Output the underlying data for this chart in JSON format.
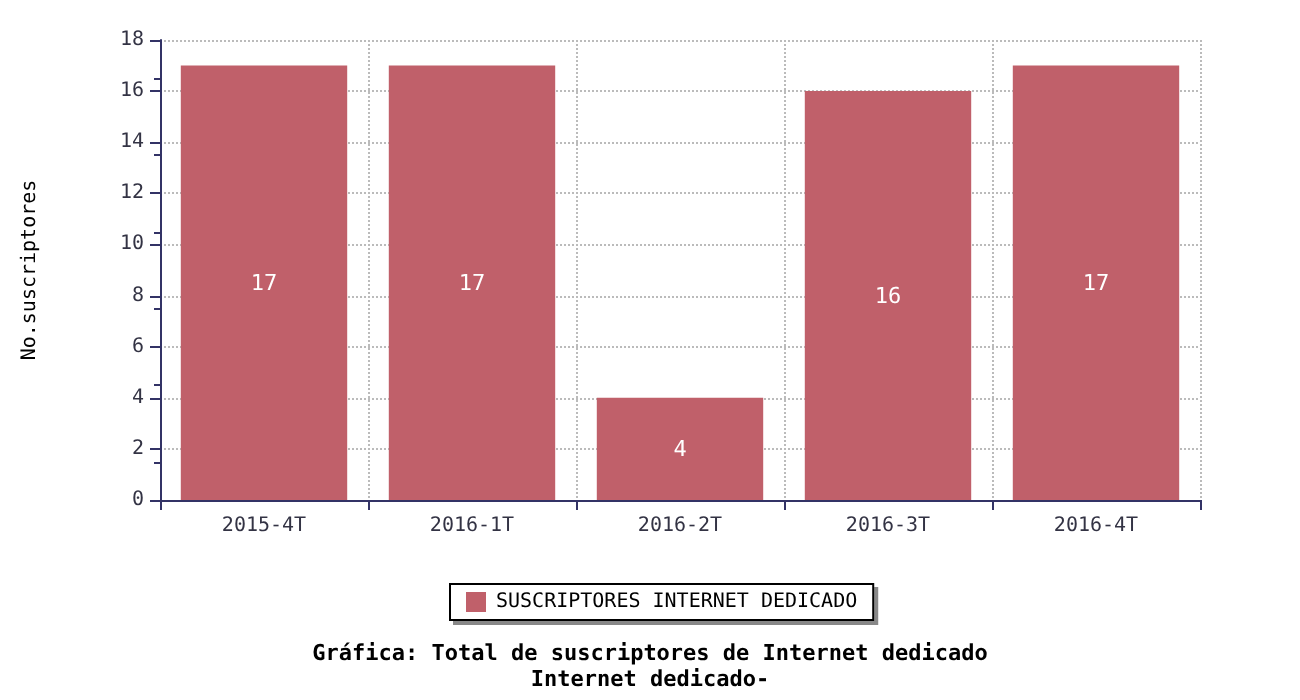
{
  "chart_data": {
    "type": "bar",
    "title": "Gráfica: Total de suscriptores de Internet dedicado",
    "subtitle": "Internet dedicado-",
    "ylabel": "No.suscriptores",
    "categories": [
      "2015-4T",
      "2016-1T",
      "2016-2T",
      "2016-3T",
      "2016-4T"
    ],
    "series": [
      {
        "name": "SUSCRIPTORES INTERNET DEDICADO",
        "color": "#c0606a",
        "values": [
          17,
          17,
          4,
          16,
          17
        ]
      }
    ],
    "ylim": [
      0,
      18
    ],
    "yticks": [
      0,
      2,
      4,
      6,
      8,
      10,
      12,
      14,
      16,
      18
    ],
    "grid": true,
    "legend": "bottom",
    "data_labels": true
  }
}
